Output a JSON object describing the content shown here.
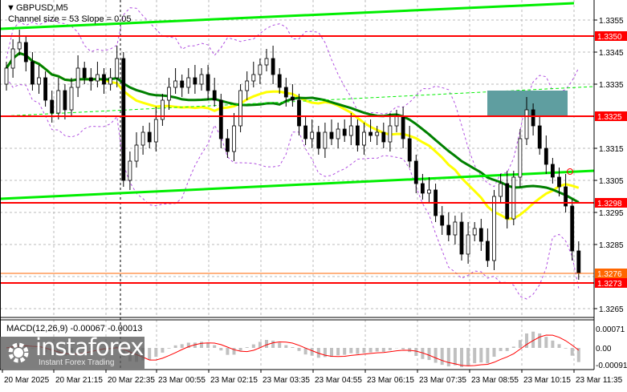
{
  "header": {
    "symbol": "GBPUSD,M5",
    "indicator_note": "Channel size = 53 Slope = 0.05"
  },
  "macd": {
    "label": "MACD(12,26,9) -0.00067 -0.00013",
    "axis_labels": [
      "0.00071",
      "0.00",
      "-0.00091"
    ],
    "axis_values": [
      0.00071,
      0,
      -0.00091
    ]
  },
  "chart_data": {
    "type": "candlestick",
    "symbol": "GBPUSD",
    "timeframe": "M5",
    "ylim": [
      1.3259,
      1.3361
    ],
    "y_ticks": [
      "1.3355",
      "1.3345",
      "1.3335",
      "1.3315",
      "1.3305",
      "1.3295",
      "1.3285",
      "1.3265"
    ],
    "x_ticks": [
      "20 Mar 2025",
      "20 Mar 21:15",
      "20 Mar 22:35",
      "23 Mar 00:55",
      "23 Mar 02:15",
      "23 Mar 03:35",
      "23 Mar 04:55",
      "23 Mar 06:15",
      "23 Mar 07:35",
      "23 Mar 08:55",
      "23 Mar 10:15",
      "23 Mar 11:35"
    ],
    "first_open": 1.3335,
    "closes": [
      1.334,
      1.3346,
      1.3348,
      1.3342,
      1.3335,
      1.3337,
      1.333,
      1.3326,
      1.3333,
      1.3327,
      1.3334,
      1.334,
      1.3337,
      1.3336,
      1.3338,
      1.3335,
      1.3337,
      1.3343,
      1.3305,
      1.3311,
      1.3316,
      1.332,
      1.3317,
      1.3324,
      1.333,
      1.3334,
      1.3336,
      1.3334,
      1.3337,
      1.3335,
      1.3338,
      1.3333,
      1.333,
      1.3318,
      1.3314,
      1.3322,
      1.3333,
      1.3336,
      1.3338,
      1.3341,
      1.3343,
      1.3338,
      1.3334,
      1.3331,
      1.333,
      1.3322,
      1.3318,
      1.332,
      1.3315,
      1.332,
      1.3318,
      1.3321,
      1.3319,
      1.3322,
      1.3316,
      1.332,
      1.3319,
      1.332,
      1.3317,
      1.3322,
      1.3325,
      1.3318,
      1.3311,
      1.3304,
      1.3301,
      1.3302,
      1.3294,
      1.3291,
      1.3288,
      1.3292,
      1.3282,
      1.3288,
      1.329,
      1.3286,
      1.328,
      1.33,
      1.3304,
      1.3293,
      1.3306,
      1.3318,
      1.3327,
      1.3322,
      1.3315,
      1.331,
      1.3306,
      1.3303,
      1.3297,
      1.3283,
      1.3276
    ],
    "levels": [
      {
        "label": "1.3350",
        "value": 1.335,
        "color": "#ff0000"
      },
      {
        "label": "1.3325",
        "value": 1.3325,
        "color": "#ff0000"
      },
      {
        "label": "1.3298",
        "value": 1.3298,
        "color": "#ff0000"
      },
      {
        "label": "1.3273",
        "value": 1.3273,
        "color": "#ff0000"
      },
      {
        "label": "1.3276",
        "value": 1.3276,
        "color": "#ff6600"
      }
    ],
    "channel": {
      "color": "#00ee00",
      "size": 53,
      "slope": 0.05
    },
    "zone": {
      "color": "#5f9ea0",
      "from": 1.3325,
      "to": 1.3333
    },
    "colors": {
      "ma_fast": "#ffff00",
      "ma_slow": "#008000",
      "bands": "#b04ee0",
      "macd_hist": "#c0c0c0",
      "macd_signal": "#ff0000"
    },
    "grid": true
  },
  "watermark": {
    "brand": "instaforex",
    "tagline": "Instant Forex Trading"
  }
}
